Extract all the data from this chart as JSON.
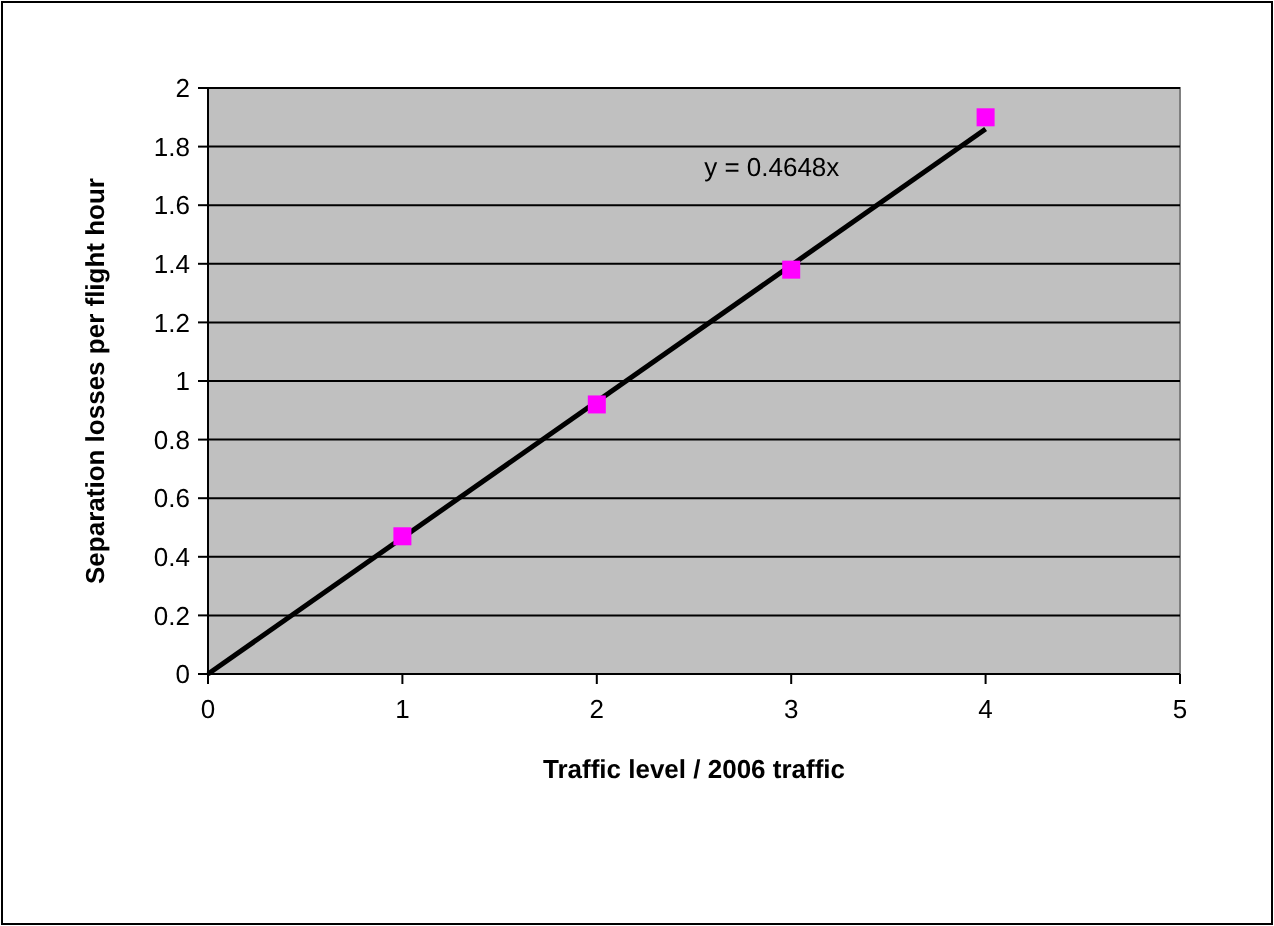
{
  "chart_data": {
    "type": "scatter",
    "xlabel": "Traffic level / 2006 traffic",
    "ylabel": "Separation losses per flight hour",
    "xlim": [
      0,
      5
    ],
    "xticks": [
      0,
      1,
      2,
      3,
      4,
      5
    ],
    "ylim": [
      0,
      2
    ],
    "yticks": [
      0,
      0.2,
      0.4,
      0.6,
      0.8,
      1,
      1.2,
      1.4,
      1.6,
      1.8,
      2
    ],
    "grid": "y",
    "series": [
      {
        "color": "#ff00ff",
        "marker": "square",
        "x": [
          1,
          2,
          3,
          4
        ],
        "values": [
          0.47,
          0.92,
          1.38,
          1.9
        ]
      },
      {
        "type": "line",
        "color": "#000000",
        "x": [
          0,
          4
        ],
        "values": [
          0,
          1.86
        ]
      }
    ],
    "annotations": [
      "y = 0.4648x"
    ]
  }
}
